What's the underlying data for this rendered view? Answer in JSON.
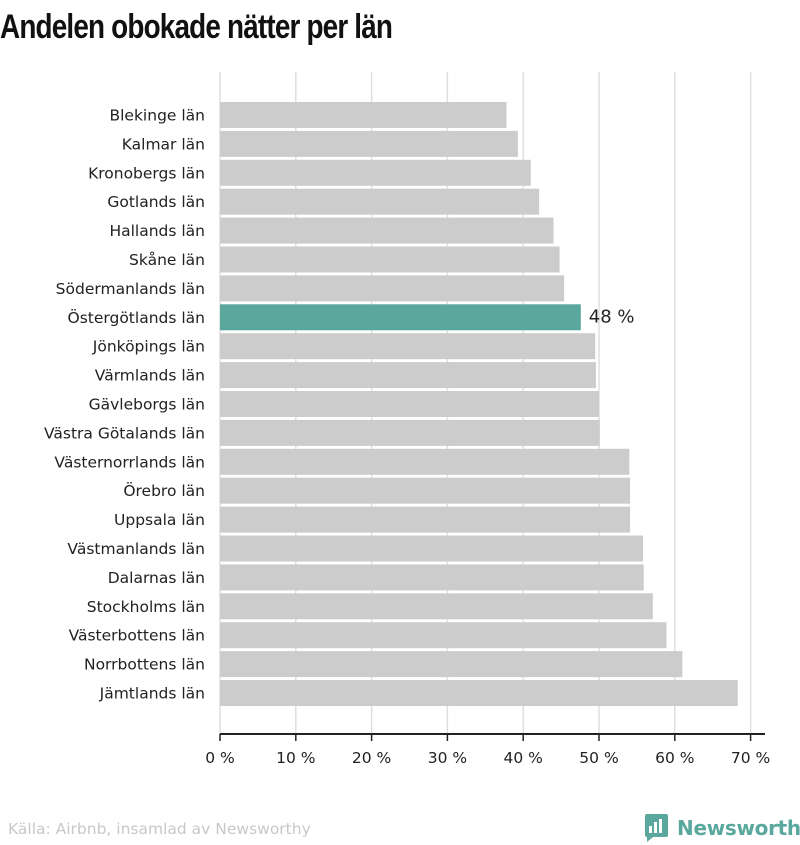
{
  "chart_data": {
    "type": "bar",
    "orientation": "horizontal",
    "title": "Andelen obokade nätter per län",
    "categories": [
      "Blekinge län",
      "Kalmar län",
      "Kronobergs län",
      "Gotlands län",
      "Hallands län",
      "Skåne län",
      "Södermanlands län",
      "Östergötlands län",
      "Jönköpings län",
      "Värmlands län",
      "Gävleborgs län",
      "Västra Götalands län",
      "Västernorrlands län",
      "Örebro län",
      "Uppsala län",
      "Västmanlands län",
      "Dalarnas län",
      "Stockholms län",
      "Västerbottens län",
      "Norrbottens län",
      "Jämtlands län"
    ],
    "values": [
      37.8,
      39.3,
      41.0,
      42.1,
      44.0,
      44.8,
      45.4,
      47.6,
      49.5,
      49.6,
      50.0,
      50.1,
      54.0,
      54.1,
      54.1,
      55.8,
      55.9,
      57.1,
      58.9,
      61.0,
      68.3
    ],
    "highlight": {
      "category": "Östergötlands län",
      "label": "48 %"
    },
    "x_ticks": [
      "0 %",
      "10 %",
      "20 %",
      "30 %",
      "40 %",
      "50 %",
      "60 %",
      "70 %"
    ],
    "xlim": [
      0,
      72
    ],
    "grid": true,
    "colors": {
      "bar": "#cccccc",
      "highlight": "#5aa89d",
      "grid": "#dddddd",
      "axis": "#222222"
    }
  },
  "footer": {
    "source": "Källa: Airbnb, insamlad av Newsworthy",
    "brand": "Newsworthy",
    "brand_icon": "newsworthy-logo-icon"
  }
}
